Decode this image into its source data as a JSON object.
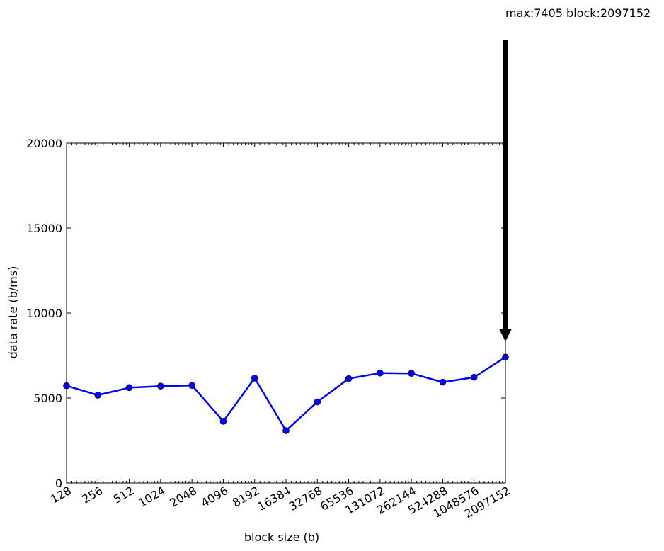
{
  "chart_data": {
    "type": "line",
    "xlabel": "block size (b)",
    "ylabel": "data rate (b/ms)",
    "xscale": "log2",
    "ylim": [
      0,
      20000
    ],
    "yticks": [
      0,
      5000,
      10000,
      15000,
      20000
    ],
    "x": [
      128,
      256,
      512,
      1024,
      2048,
      4096,
      8192,
      16384,
      32768,
      65536,
      131072,
      262144,
      524288,
      1048576,
      2097152
    ],
    "x_tick_labels": [
      "128",
      "256",
      "512",
      "1024",
      "2048",
      "4096",
      "8192",
      "16384",
      "32768",
      "65536",
      "131072",
      "262144",
      "524288",
      "1048576",
      "2097152"
    ],
    "series": [
      {
        "color": "#0000ff",
        "values": [
          5720,
          5170,
          5610,
          5700,
          5740,
          3630,
          6170,
          3080,
          4770,
          6140,
          6470,
          6450,
          5930,
          6220,
          7405
        ]
      }
    ],
    "annotation": {
      "text": "max:7405 block:2097152",
      "target_x": 2097152,
      "target_y": 7405,
      "arrow": "down"
    },
    "grid": false,
    "legend": "none"
  }
}
